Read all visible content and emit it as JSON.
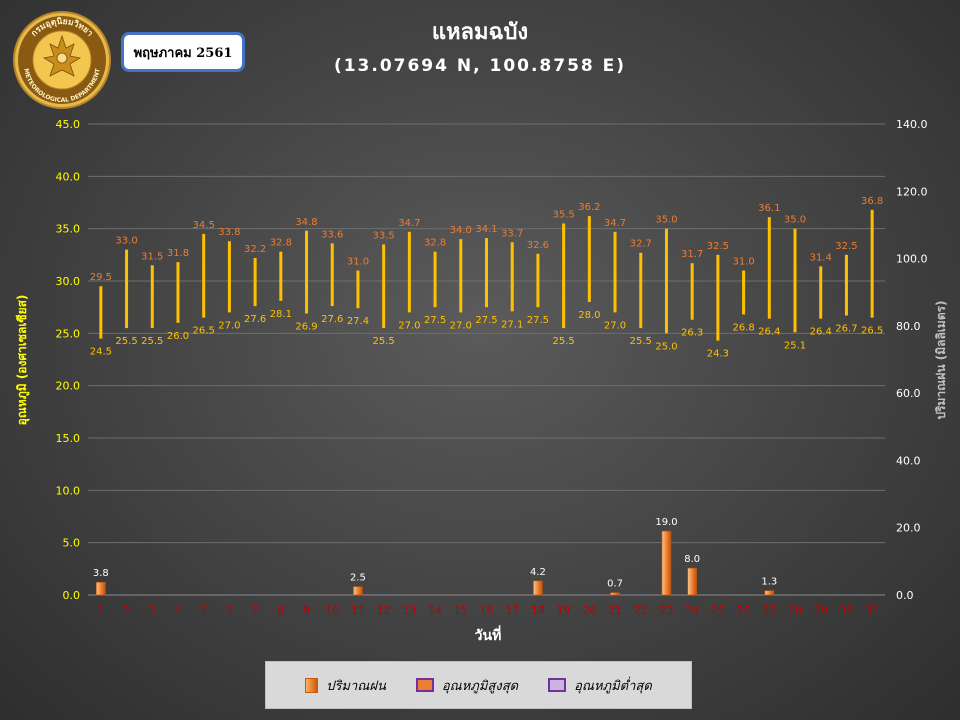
{
  "header": {
    "month_label": "พฤษภาคม 2561",
    "title": "แหลมฉบัง",
    "subtitle": "(13.07694 N, 100.8758 E)"
  },
  "logo": {
    "icon": "meteorological-department-seal-icon",
    "text_top": "กรมอุตุนิยมวิทยา",
    "text_bottom": "METEOROLOGICAL DEPARTMENT"
  },
  "legend": {
    "rain": "ปริมาณฝน",
    "max": "อุณหภูมิสูงสุด",
    "min": "อุณหภูมิต่ำสุด"
  },
  "colors": {
    "temp_bar": "#ffc000",
    "max_label": "#ed7d31",
    "min_label": "#ffc000",
    "rain_bar": "#ed7d31",
    "day_label": "#c00000",
    "axis_label": "#ffff00"
  },
  "chart_data": {
    "type": "bar",
    "xlabel": "วันที่",
    "ylabel": "อุณหภูมิ (องศาเซลเซียส)",
    "y2label": "ปริมาณฝน (มิลลิเมตร)",
    "ylim": [
      0,
      45
    ],
    "y2lim": [
      0,
      140
    ],
    "yticks": [
      "0.0",
      "5.0",
      "10.0",
      "15.0",
      "20.0",
      "25.0",
      "30.0",
      "35.0",
      "40.0",
      "45.0"
    ],
    "y2ticks": [
      "0.0",
      "20.0",
      "40.0",
      "60.0",
      "80.0",
      "100.0",
      "120.0",
      "140.0"
    ],
    "grid": true,
    "categories": [
      "1",
      "2",
      "3",
      "4",
      "5",
      "6",
      "7",
      "8",
      "9",
      "10",
      "11",
      "12",
      "13",
      "14",
      "15",
      "16",
      "17",
      "18",
      "19",
      "20",
      "21",
      "22",
      "23",
      "24",
      "25",
      "26",
      "27",
      "28",
      "29",
      "30",
      "31"
    ],
    "series": [
      {
        "name": "อุณหภูมิสูงสุด",
        "values": [
          29.5,
          33.0,
          31.5,
          31.8,
          34.5,
          33.8,
          32.2,
          32.8,
          34.8,
          33.6,
          31.0,
          33.5,
          34.7,
          32.8,
          34.0,
          34.1,
          33.7,
          32.6,
          35.5,
          36.2,
          34.7,
          32.7,
          35.0,
          31.7,
          32.5,
          31.0,
          36.1,
          35.0,
          31.4,
          32.5,
          36.8
        ],
        "labels": [
          "29.5",
          "33.0",
          "31.5",
          "31.8",
          "34.5",
          "33.8",
          "32.2",
          "32.8",
          "34.8",
          "33.6",
          "31.0",
          "33.5",
          "34.7",
          "32.8",
          "34.0",
          "34.1",
          "33.7",
          "32.6",
          "35.5",
          "36.2",
          "34.7",
          "32.7",
          "35.0",
          "31.7",
          "32.5",
          "31.0",
          "36.1",
          "35.0",
          "31.4",
          "32.5",
          "36.8"
        ]
      },
      {
        "name": "อุณหภูมิต่ำสุด",
        "values": [
          24.5,
          25.5,
          25.5,
          26.0,
          26.5,
          27.0,
          27.6,
          28.1,
          26.9,
          27.6,
          27.4,
          25.5,
          27.0,
          27.5,
          27.0,
          27.5,
          27.1,
          27.5,
          25.5,
          28.0,
          27.0,
          25.5,
          25.0,
          26.3,
          24.3,
          26.8,
          26.4,
          25.1,
          26.4,
          26.7,
          26.5
        ],
        "labels": [
          "24.5",
          "25.5",
          "25.5",
          "26.0",
          "26.5",
          "27.0",
          "27.6",
          "28.1",
          "26.9",
          "27.6",
          "27.4",
          "25.5",
          "27.0",
          "27.5",
          "27.0",
          "27.5",
          "27.1",
          "27.5",
          "25.5",
          "28.0",
          "27.0",
          "25.5",
          "25.0",
          "26.3",
          "24.3",
          "26.8",
          "26.4",
          "25.1",
          "26.4",
          "26.7",
          "26.5"
        ]
      },
      {
        "name": "ปริมาณฝน",
        "axis": "right",
        "values": [
          3.8,
          0,
          0,
          0,
          0,
          0,
          0,
          0,
          0,
          0,
          2.5,
          0,
          0,
          0,
          0,
          0,
          0,
          4.2,
          0,
          0,
          0.7,
          0,
          19.0,
          8.0,
          0,
          0,
          1.3,
          0,
          0,
          0,
          0
        ],
        "labels": [
          "3.8",
          "",
          "",
          "",
          "",
          "",
          "",
          "",
          "",
          "",
          "2.5",
          "",
          "",
          "",
          "",
          "",
          "",
          "4.2",
          "",
          "",
          "0.7",
          "",
          "19.0",
          "8.0",
          "",
          "",
          "1.3",
          "",
          "",
          "",
          ""
        ]
      }
    ]
  }
}
